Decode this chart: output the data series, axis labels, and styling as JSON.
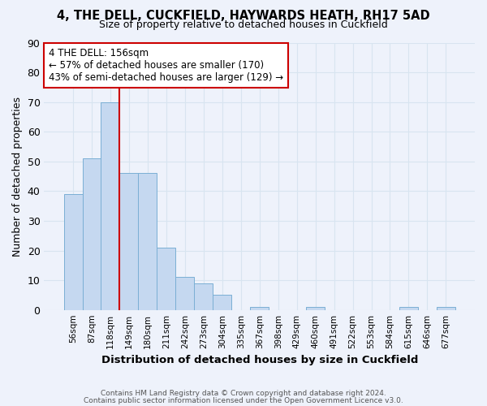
{
  "title1": "4, THE DELL, CUCKFIELD, HAYWARDS HEATH, RH17 5AD",
  "title2": "Size of property relative to detached houses in Cuckfield",
  "xlabel": "Distribution of detached houses by size in Cuckfield",
  "ylabel": "Number of detached properties",
  "bin_labels": [
    "56sqm",
    "87sqm",
    "118sqm",
    "149sqm",
    "180sqm",
    "211sqm",
    "242sqm",
    "273sqm",
    "304sqm",
    "335sqm",
    "367sqm",
    "398sqm",
    "429sqm",
    "460sqm",
    "491sqm",
    "522sqm",
    "553sqm",
    "584sqm",
    "615sqm",
    "646sqm",
    "677sqm"
  ],
  "bar_heights": [
    39,
    51,
    70,
    46,
    46,
    21,
    11,
    9,
    5,
    0,
    1,
    0,
    0,
    1,
    0,
    0,
    0,
    0,
    1,
    0,
    1
  ],
  "bar_color": "#c5d8f0",
  "bar_edge_color": "#7bafd4",
  "vline_color": "#cc0000",
  "vline_position": 2.5,
  "annotation_title": "4 THE DELL: 156sqm",
  "annotation_line1": "← 57% of detached houses are smaller (170)",
  "annotation_line2": "43% of semi-detached houses are larger (129) →",
  "annotation_box_color": "#cc0000",
  "ylim": [
    0,
    90
  ],
  "yticks": [
    0,
    10,
    20,
    30,
    40,
    50,
    60,
    70,
    80,
    90
  ],
  "footer1": "Contains HM Land Registry data © Crown copyright and database right 2024.",
  "footer2": "Contains public sector information licensed under the Open Government Licence v3.0.",
  "bg_color": "#eef2fb",
  "grid_color": "#d8e4f0"
}
